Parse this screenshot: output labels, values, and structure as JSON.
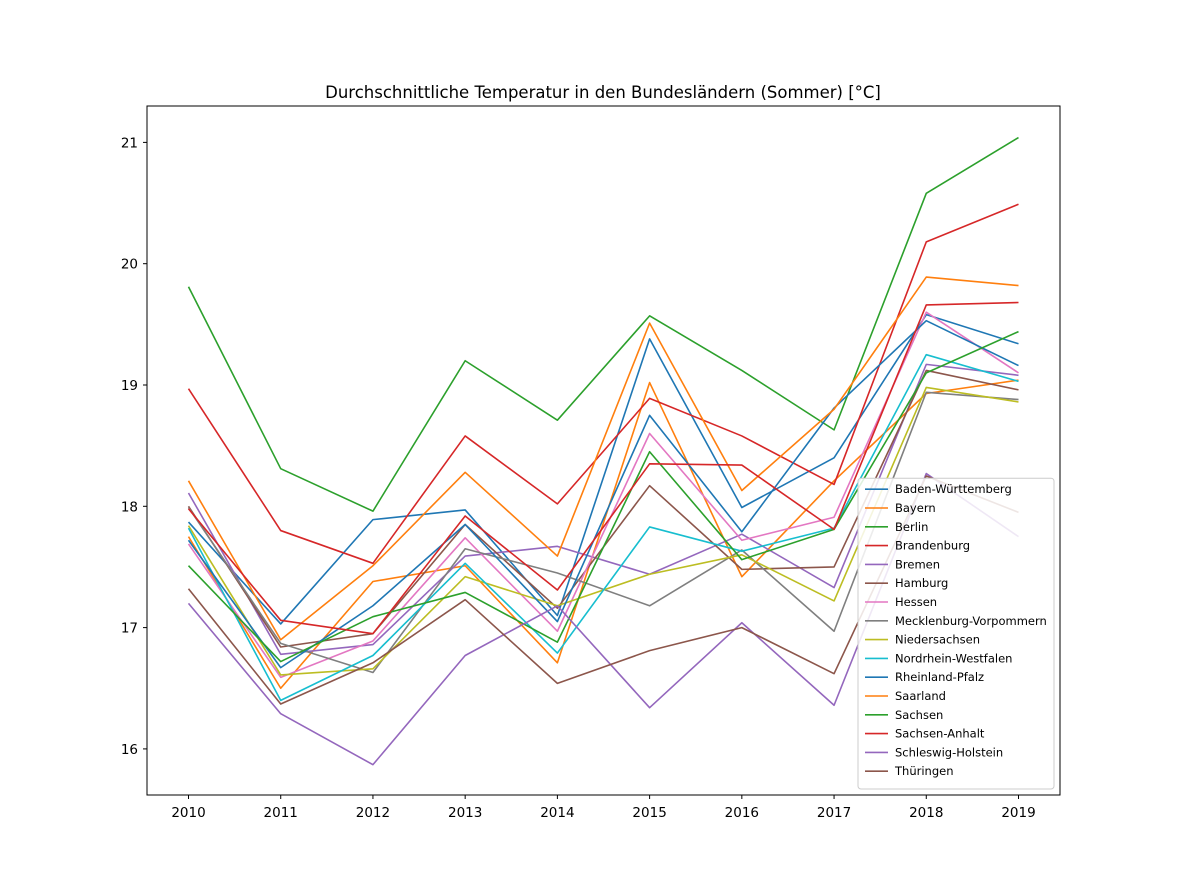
{
  "chart_data": {
    "type": "line",
    "title": "Durchschnittliche Temperatur in den Bundesländern (Sommer) [°C]",
    "xlabel": "",
    "ylabel": "",
    "x": [
      2010,
      2011,
      2012,
      2013,
      2014,
      2015,
      2016,
      2017,
      2018,
      2019
    ],
    "x_ticks": [
      "2010",
      "2011",
      "2012",
      "2013",
      "2014",
      "2015",
      "2016",
      "2017",
      "2018",
      "2019"
    ],
    "y_ticks": [
      "16",
      "17",
      "18",
      "19",
      "20",
      "21"
    ],
    "xlim": [
      2009.55,
      2019.45
    ],
    "ylim": [
      15.62,
      21.3
    ],
    "grid": false,
    "legend_position": "lower right",
    "series": [
      {
        "name": "Baden-Württemberg",
        "color": "#1f77b4",
        "values": [
          17.87,
          17.03,
          17.89,
          17.97,
          17.1,
          19.38,
          17.99,
          18.4,
          19.58,
          19.34
        ]
      },
      {
        "name": "Bayern",
        "color": "#ff7f0e",
        "values": [
          17.75,
          16.5,
          17.38,
          17.51,
          16.71,
          19.02,
          17.42,
          18.21,
          18.93,
          19.04
        ]
      },
      {
        "name": "Berlin",
        "color": "#2ca02c",
        "values": [
          19.81,
          18.31,
          17.96,
          19.2,
          18.71,
          19.57,
          19.12,
          18.63,
          20.58,
          21.04
        ]
      },
      {
        "name": "Brandenburg",
        "color": "#d62728",
        "values": [
          18.97,
          17.8,
          17.53,
          18.58,
          18.02,
          18.89,
          18.58,
          18.18,
          20.18,
          20.49
        ]
      },
      {
        "name": "Bremen",
        "color": "#9467bd",
        "values": [
          18.11,
          16.78,
          16.86,
          17.59,
          17.67,
          17.44,
          17.77,
          17.33,
          19.17,
          19.08
        ]
      },
      {
        "name": "Hamburg",
        "color": "#8c564b",
        "values": [
          18.0,
          16.84,
          16.95,
          17.85,
          17.16,
          18.17,
          17.48,
          17.5,
          19.12,
          18.96
        ]
      },
      {
        "name": "Hessen",
        "color": "#e377c2",
        "values": [
          17.69,
          16.59,
          16.89,
          17.74,
          16.97,
          18.6,
          17.72,
          17.91,
          19.6,
          19.1
        ]
      },
      {
        "name": "Mecklenburg-Vorpommern",
        "color": "#7f7f7f",
        "values": [
          17.99,
          16.87,
          16.63,
          17.65,
          17.45,
          17.18,
          17.64,
          16.97,
          18.94,
          18.88
        ]
      },
      {
        "name": "Niedersachsen",
        "color": "#bcbd22",
        "values": [
          17.84,
          16.61,
          16.66,
          17.42,
          17.18,
          17.44,
          17.6,
          17.22,
          18.98,
          18.86
        ]
      },
      {
        "name": "Nordrhein-Westfalen",
        "color": "#17becf",
        "values": [
          17.82,
          16.4,
          16.77,
          17.53,
          16.79,
          17.83,
          17.63,
          17.82,
          19.25,
          19.03
        ]
      },
      {
        "name": "Rheinland-Pfalz",
        "color": "#1f77b4",
        "values": [
          17.72,
          16.67,
          17.18,
          17.85,
          17.05,
          18.75,
          17.79,
          18.81,
          19.53,
          19.16
        ]
      },
      {
        "name": "Saarland",
        "color": "#ff7f0e",
        "values": [
          18.21,
          16.9,
          17.51,
          18.28,
          17.59,
          19.51,
          18.13,
          18.8,
          19.89,
          19.82
        ]
      },
      {
        "name": "Sachsen",
        "color": "#2ca02c",
        "values": [
          17.51,
          16.72,
          17.09,
          17.29,
          16.88,
          18.45,
          17.56,
          17.81,
          19.1,
          19.44
        ]
      },
      {
        "name": "Sachsen-Anhalt",
        "color": "#d62728",
        "values": [
          17.98,
          17.06,
          16.95,
          17.92,
          17.31,
          18.35,
          18.34,
          17.81,
          19.66,
          19.68
        ]
      },
      {
        "name": "Schleswig-Holstein",
        "color": "#9467bd",
        "values": [
          17.2,
          16.29,
          15.87,
          16.77,
          17.18,
          16.34,
          17.04,
          16.36,
          18.27,
          17.75
        ]
      },
      {
        "name": "Thüringen",
        "color": "#8c564b",
        "values": [
          17.32,
          16.37,
          16.71,
          17.23,
          16.54,
          16.81,
          17.0,
          16.62,
          18.25,
          17.95
        ]
      }
    ]
  }
}
